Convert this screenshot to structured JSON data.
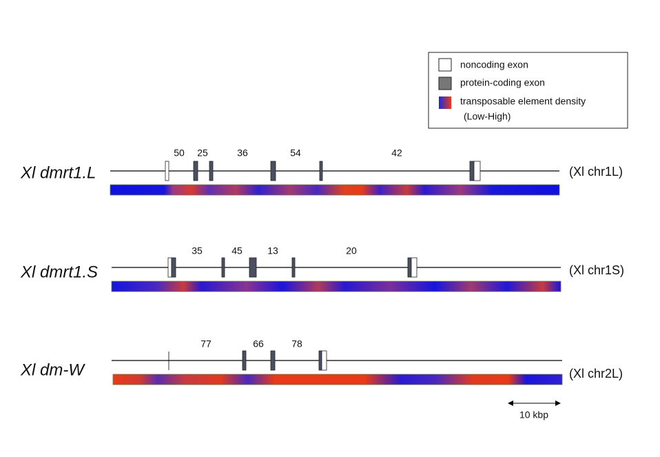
{
  "legend": {
    "items": [
      "noncoding exon",
      "protein-coding exon",
      "transposable element density",
      "(Low-High)"
    ]
  },
  "genes": [
    {
      "name": "Xl dmrt1.L",
      "chromosome": "(Xl chr1L)",
      "introns": [
        50,
        25,
        36,
        54,
        42
      ]
    },
    {
      "name": "Xl dmrt1.S",
      "chromosome": "(Xl chr1S)",
      "introns": [
        35,
        45,
        13,
        20
      ]
    },
    {
      "name": "Xl dm-W",
      "chromosome": "(Xl chr2L)",
      "introns": [
        77,
        66,
        78
      ]
    }
  ],
  "scale_bar": "10 kbp"
}
